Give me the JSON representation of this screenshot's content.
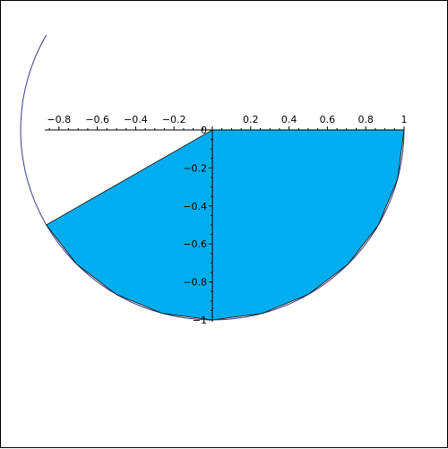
{
  "colors": {
    "fill": "#00aeef",
    "curve": "#3b3b8f",
    "axis": "#000000",
    "background": "#ffffff"
  },
  "chart_data": {
    "type": "area",
    "title": "",
    "xlabel": "",
    "ylabel": "",
    "xlim": [
      -0.866,
      1.0
    ],
    "ylim": [
      -1.0,
      0.0
    ],
    "grid": false,
    "legend": "none",
    "x_ticks": [
      "−0.8",
      "−0.6",
      "−0.4",
      "−0.2",
      "0.2",
      "0.4",
      "0.6",
      "0.8",
      "1"
    ],
    "x_tick_values": [
      -0.8,
      -0.6,
      -0.4,
      -0.2,
      0.2,
      0.4,
      0.6,
      0.8,
      1.0
    ],
    "y_ticks": [
      "0",
      "−0.2",
      "−0.4",
      "−0.6",
      "−0.8",
      "−1"
    ],
    "y_tick_values": [
      0,
      -0.2,
      -0.4,
      -0.6,
      -0.8,
      -1.0
    ],
    "series": [
      {
        "values": [
          [
            0,
            0
          ],
          [
            1.0,
            0
          ],
          [
            0.966,
            -0.259
          ],
          [
            0.866,
            -0.5
          ],
          [
            0.707,
            -0.707
          ],
          [
            0.5,
            -0.866
          ],
          [
            0.259,
            -0.966
          ],
          [
            0.0,
            -1.0
          ],
          [
            -0.259,
            -0.966
          ],
          [
            -0.5,
            -0.866
          ],
          [
            -0.707,
            -0.707
          ],
          [
            -0.866,
            -0.5
          ],
          [
            0,
            0
          ]
        ]
      }
    ]
  }
}
